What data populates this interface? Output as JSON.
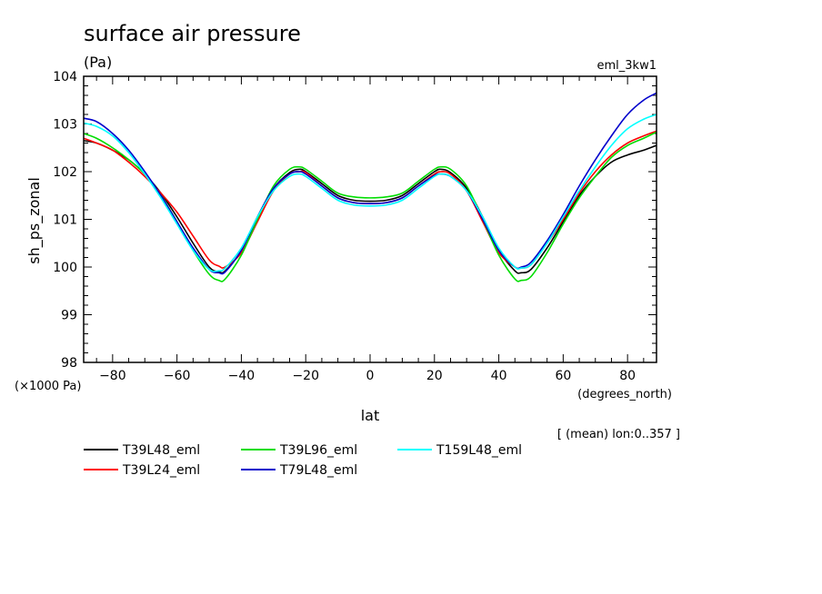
{
  "chart_data": {
    "type": "line",
    "title": "surface air pressure",
    "units_label": "(Pa)",
    "experiment_label": "eml_3kw1",
    "xlabel": "lat",
    "x_units_label": "(degrees_north)",
    "ylabel": "sh_ps_zonal",
    "y_scale_label": "(×1000 Pa)",
    "note": "[ (mean) lon:0..357 ]",
    "xlim": [
      -89,
      89
    ],
    "ylim": [
      98,
      104
    ],
    "x_ticks": [
      -80,
      -60,
      -40,
      -20,
      0,
      20,
      40,
      60,
      80
    ],
    "x_tick_labels": [
      "−80",
      "−60",
      "−40",
      "−20",
      "0",
      "20",
      "40",
      "60",
      "80"
    ],
    "y_ticks": [
      98,
      99,
      100,
      101,
      102,
      103,
      104
    ],
    "y_tick_labels": [
      "98",
      "99",
      "100",
      "101",
      "102",
      "103",
      "104"
    ],
    "x": [
      -89,
      -85,
      -80,
      -75,
      -70,
      -65,
      -60,
      -55,
      -50,
      -47,
      -45,
      -40,
      -35,
      -30,
      -25,
      -22,
      -20,
      -15,
      -10,
      -5,
      0,
      5,
      10,
      15,
      20,
      22,
      25,
      30,
      35,
      40,
      45,
      47,
      50,
      55,
      60,
      65,
      70,
      75,
      80,
      85,
      89
    ],
    "series": [
      {
        "name": "T39L48_eml",
        "color": "#000000",
        "values": [
          102.65,
          102.6,
          102.45,
          102.25,
          101.95,
          101.55,
          101.05,
          100.5,
          100.0,
          99.9,
          99.92,
          100.35,
          101.05,
          101.65,
          101.98,
          102.05,
          102.0,
          101.75,
          101.5,
          101.4,
          101.38,
          101.4,
          101.5,
          101.75,
          102.0,
          102.05,
          101.98,
          101.65,
          101.05,
          100.35,
          99.92,
          99.88,
          99.95,
          100.4,
          100.95,
          101.5,
          101.9,
          102.2,
          102.35,
          102.45,
          102.55
        ]
      },
      {
        "name": "T39L24_eml",
        "color": "#ff0000",
        "values": [
          102.7,
          102.6,
          102.45,
          102.2,
          101.9,
          101.55,
          101.15,
          100.65,
          100.15,
          100.02,
          100.0,
          100.3,
          100.95,
          101.6,
          101.95,
          102.0,
          101.98,
          101.7,
          101.45,
          101.35,
          101.33,
          101.35,
          101.45,
          101.7,
          101.95,
          102.0,
          101.95,
          101.6,
          100.95,
          100.3,
          100.0,
          99.98,
          100.05,
          100.5,
          101.0,
          101.55,
          102.0,
          102.35,
          102.6,
          102.75,
          102.85
        ]
      },
      {
        "name": "T39L96_eml",
        "color": "#00dd00",
        "values": [
          102.8,
          102.7,
          102.5,
          102.25,
          101.95,
          101.5,
          100.95,
          100.35,
          99.85,
          99.72,
          99.75,
          100.25,
          101.0,
          101.7,
          102.05,
          102.1,
          102.05,
          101.8,
          101.55,
          101.47,
          101.45,
          101.47,
          101.55,
          101.8,
          102.05,
          102.1,
          102.05,
          101.7,
          101.0,
          100.25,
          99.75,
          99.72,
          99.8,
          100.3,
          100.9,
          101.45,
          101.9,
          102.3,
          102.55,
          102.7,
          102.83
        ]
      },
      {
        "name": "T79L48_eml",
        "color": "#0000cc",
        "values": [
          103.12,
          103.05,
          102.8,
          102.45,
          102.0,
          101.5,
          100.95,
          100.4,
          99.95,
          99.88,
          99.9,
          100.35,
          101.05,
          101.65,
          101.95,
          102.0,
          101.95,
          101.7,
          101.45,
          101.35,
          101.33,
          101.35,
          101.45,
          101.7,
          101.92,
          101.95,
          101.9,
          101.6,
          101.0,
          100.35,
          100.0,
          100.0,
          100.1,
          100.55,
          101.1,
          101.7,
          102.25,
          102.75,
          103.2,
          103.5,
          103.65
        ]
      },
      {
        "name": "T159L48_eml",
        "color": "#00ffff",
        "values": [
          103.02,
          102.95,
          102.75,
          102.4,
          101.95,
          101.45,
          100.9,
          100.35,
          99.95,
          99.92,
          99.98,
          100.4,
          101.05,
          101.6,
          101.9,
          101.95,
          101.9,
          101.65,
          101.4,
          101.3,
          101.28,
          101.3,
          101.4,
          101.65,
          101.9,
          101.95,
          101.9,
          101.6,
          101.05,
          100.4,
          100.0,
          99.98,
          100.05,
          100.5,
          101.05,
          101.6,
          102.1,
          102.55,
          102.9,
          103.1,
          103.2
        ]
      }
    ],
    "legend_position": "bottom-left"
  }
}
